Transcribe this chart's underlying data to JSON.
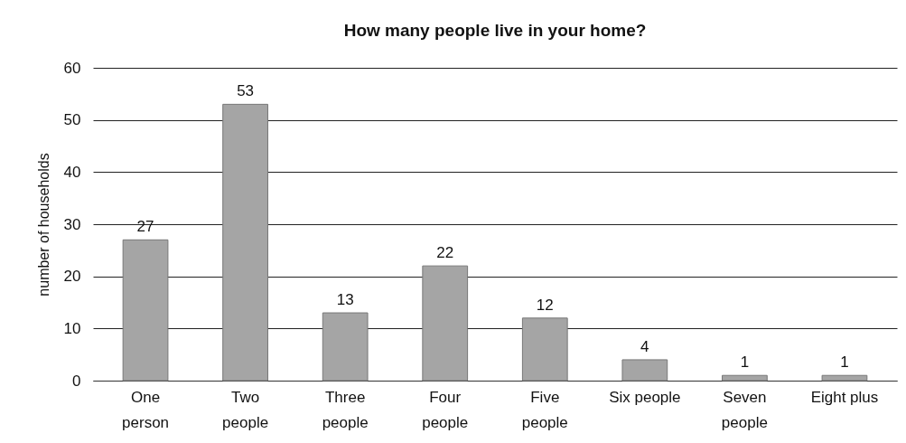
{
  "chart_data": {
    "type": "bar",
    "title": "How many people live in your home?",
    "ylabel": "number of households",
    "categories": [
      "One\nperson",
      "Two\npeople",
      "Three\npeople",
      "Four\npeople",
      "Five\npeople",
      "Six people",
      "Seven\npeople",
      "Eight plus"
    ],
    "values": [
      27,
      53,
      13,
      22,
      12,
      4,
      1,
      1
    ],
    "color": "#a5a5a5",
    "ylim": [
      0,
      60
    ],
    "yticks": [
      0,
      10,
      20,
      30,
      40,
      50,
      60
    ],
    "grid": "y",
    "data_labels": true
  }
}
